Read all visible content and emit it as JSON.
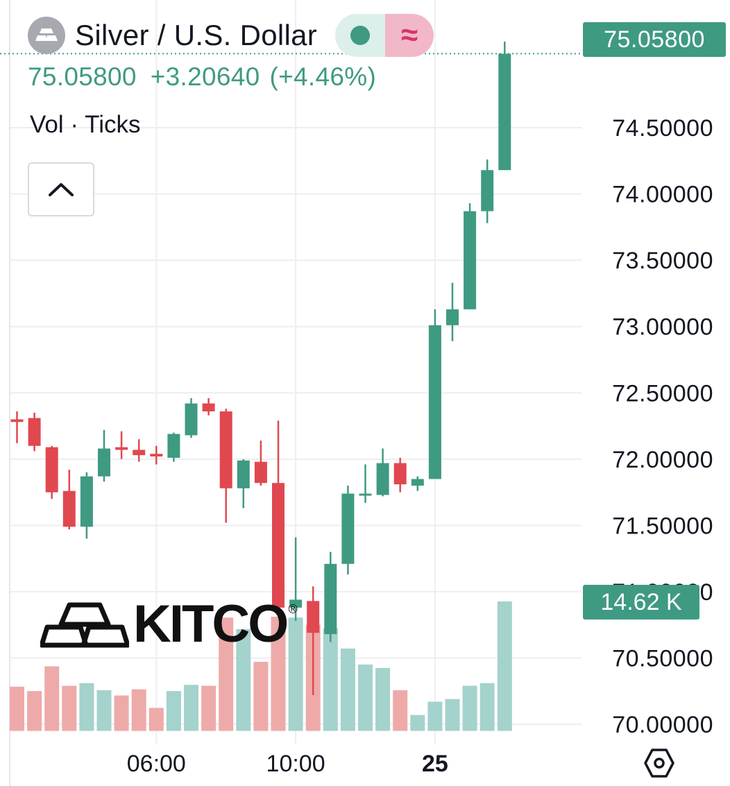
{
  "header": {
    "symbol_name": "Silver / U.S. Dollar",
    "last_price": "75.05800",
    "change": "+3.20640",
    "change_pct": "(+4.46%)",
    "volume_label": "Vol · Ticks",
    "pill_right_glyph": "≈"
  },
  "tags": {
    "price": "75.05800",
    "volume": "14.62 K"
  },
  "logo": {
    "text": "KITCO",
    "mark": "®"
  },
  "icons": {
    "symbol": "silver-bars-icon",
    "status": "market-status-dot-icon",
    "chevron": "chevron-up-icon",
    "settings": "hexagon-settings-icon"
  },
  "colors": {
    "up": "#3f9a82",
    "down": "#e04850",
    "vol_up": "#a4d2cc",
    "vol_down": "#eeaaa8",
    "grid": "#eeeef2"
  },
  "chart_data": {
    "type": "candlestick",
    "y_ticks": [
      "75.05800",
      "74.50000",
      "74.00000",
      "73.50000",
      "73.00000",
      "72.50000",
      "72.00000",
      "71.50000",
      "71.00000",
      "70.50000",
      "70.00000"
    ],
    "y_tick_values": [
      74.5,
      74.0,
      73.5,
      73.0,
      72.5,
      72.0,
      71.5,
      71.0,
      70.5,
      70.0
    ],
    "y_range": [
      69.95,
      75.35
    ],
    "x_ticks": [
      {
        "label": "06:00",
        "bar": 8,
        "bold": false
      },
      {
        "label": "10:00",
        "bar": 16,
        "bold": false
      },
      {
        "label": "25",
        "bar": 24,
        "bold": true
      }
    ],
    "current_price": 75.058,
    "volume_max": 14.62,
    "volume_unit": "K",
    "candles": [
      {
        "o": 72.3,
        "h": 72.36,
        "l": 72.12,
        "c": 72.28,
        "v": 5.0
      },
      {
        "o": 72.31,
        "h": 72.35,
        "l": 72.06,
        "c": 72.1,
        "v": 4.5
      },
      {
        "o": 72.09,
        "h": 72.1,
        "l": 71.7,
        "c": 71.75,
        "v": 7.3
      },
      {
        "o": 71.76,
        "h": 71.92,
        "l": 71.47,
        "c": 71.49,
        "v": 5.1
      },
      {
        "o": 71.49,
        "h": 71.9,
        "l": 71.4,
        "c": 71.87,
        "v": 5.4
      },
      {
        "o": 71.87,
        "h": 72.22,
        "l": 71.83,
        "c": 72.08,
        "v": 4.6
      },
      {
        "o": 72.09,
        "h": 72.21,
        "l": 72.0,
        "c": 72.07,
        "v": 4.0
      },
      {
        "o": 72.07,
        "h": 72.15,
        "l": 71.98,
        "c": 72.03,
        "v": 4.7
      },
      {
        "o": 72.04,
        "h": 72.1,
        "l": 71.96,
        "c": 72.02,
        "v": 2.6
      },
      {
        "o": 72.01,
        "h": 72.2,
        "l": 71.98,
        "c": 72.19,
        "v": 4.5
      },
      {
        "o": 72.18,
        "h": 72.46,
        "l": 72.16,
        "c": 72.42,
        "v": 5.2
      },
      {
        "o": 72.42,
        "h": 72.46,
        "l": 72.33,
        "c": 72.36,
        "v": 5.1
      },
      {
        "o": 72.36,
        "h": 72.38,
        "l": 71.52,
        "c": 71.78,
        "v": 12.8
      },
      {
        "o": 71.78,
        "h": 72.0,
        "l": 71.63,
        "c": 71.99,
        "v": 11.5
      },
      {
        "o": 71.98,
        "h": 72.14,
        "l": 71.8,
        "c": 71.82,
        "v": 7.8
      },
      {
        "o": 71.82,
        "h": 72.29,
        "l": 70.87,
        "c": 70.88,
        "v": 12.9
      },
      {
        "o": 70.88,
        "h": 71.41,
        "l": 70.78,
        "c": 70.94,
        "v": 12.8
      },
      {
        "o": 70.93,
        "h": 71.04,
        "l": 70.22,
        "c": 70.69,
        "v": 12.0
      },
      {
        "o": 70.68,
        "h": 71.3,
        "l": 70.62,
        "c": 71.21,
        "v": 11.6
      },
      {
        "o": 71.21,
        "h": 71.8,
        "l": 71.13,
        "c": 71.74,
        "v": 9.3
      },
      {
        "o": 71.74,
        "h": 71.96,
        "l": 71.67,
        "c": 71.74,
        "v": 7.5
      },
      {
        "o": 71.73,
        "h": 72.08,
        "l": 71.72,
        "c": 71.97,
        "v": 7.1
      },
      {
        "o": 71.97,
        "h": 72.01,
        "l": 71.75,
        "c": 71.81,
        "v": 4.6
      },
      {
        "o": 71.8,
        "h": 71.87,
        "l": 71.76,
        "c": 71.85,
        "v": 1.8
      },
      {
        "o": 71.85,
        "h": 73.13,
        "l": 71.85,
        "c": 73.01,
        "v": 3.3
      },
      {
        "o": 73.01,
        "h": 73.33,
        "l": 72.89,
        "c": 73.13,
        "v": 3.6
      },
      {
        "o": 73.13,
        "h": 73.93,
        "l": 73.13,
        "c": 73.87,
        "v": 5.1
      },
      {
        "o": 73.87,
        "h": 74.26,
        "l": 73.78,
        "c": 74.18,
        "v": 5.4
      },
      {
        "o": 74.18,
        "h": 75.15,
        "l": 74.18,
        "c": 75.058,
        "v": 14.62
      }
    ]
  }
}
